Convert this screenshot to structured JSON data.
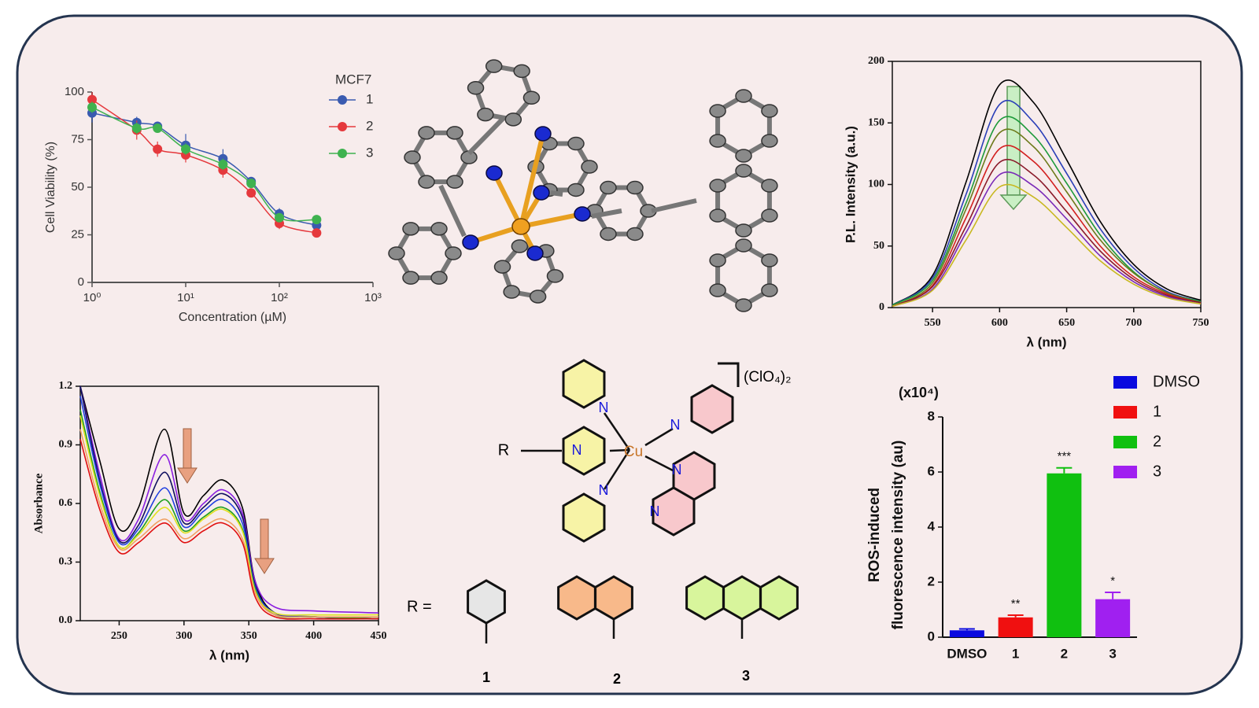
{
  "chart_data": [
    {
      "type": "scatter",
      "log_x": true,
      "x": [
        1,
        3,
        5,
        10,
        25,
        50,
        100,
        250
      ],
      "xlim": [
        1,
        1000
      ],
      "xticks": [
        {
          "value": 1,
          "label": "10⁰"
        },
        {
          "value": 10,
          "label": "10¹"
        },
        {
          "value": 100,
          "label": "10²"
        },
        {
          "value": 1000,
          "label": "10³"
        }
      ],
      "ylim": [
        0,
        100
      ],
      "yticks": [
        0,
        25,
        50,
        75,
        100
      ],
      "xlabel": "Concentration (µM)",
      "ylabel": "Cell Viability (%)",
      "legend_title": "MCF7",
      "series": [
        {
          "name": "1",
          "color": "#3a5bb0",
          "values": [
            89,
            84,
            82,
            72,
            65,
            53,
            36,
            30
          ],
          "errors": [
            5,
            3,
            2,
            6,
            5,
            2,
            3,
            2
          ]
        },
        {
          "name": "2",
          "color": "#e5393d",
          "values": [
            96,
            80,
            70,
            67,
            59,
            47,
            31,
            26
          ],
          "errors": [
            4,
            5,
            4,
            4,
            4,
            2,
            3,
            2
          ]
        },
        {
          "name": "3",
          "color": "#3fb24f",
          "values": [
            92,
            81,
            81,
            70,
            62,
            52,
            34,
            33
          ],
          "errors": [
            3,
            3,
            2,
            3,
            3,
            2,
            2,
            2
          ]
        }
      ]
    },
    {
      "type": "line",
      "x": [
        520,
        550,
        575,
        600,
        625,
        650,
        675,
        700,
        725,
        750
      ],
      "xlim": [
        520,
        750
      ],
      "xticks": [
        550,
        600,
        650,
        700,
        750
      ],
      "ylim": [
        0,
        200
      ],
      "yticks": [
        0,
        50,
        100,
        150,
        200
      ],
      "xlabel": "λ (nm)",
      "ylabel": "P.L. Intensity (a.u.)",
      "series": [
        {
          "color": "#000000",
          "values": [
            2,
            26,
            102,
            181,
            167,
            120,
            70,
            35,
            15,
            6
          ]
        },
        {
          "color": "#2a3fb8",
          "values": [
            2,
            24,
            92,
            165,
            151,
            109,
            64,
            32,
            13,
            5
          ]
        },
        {
          "color": "#1d9a3a",
          "values": [
            2,
            22,
            85,
            152,
            140,
            101,
            59,
            29,
            12,
            5
          ]
        },
        {
          "color": "#6d7a1a",
          "values": [
            1,
            20,
            80,
            142,
            131,
            94,
            55,
            28,
            12,
            4
          ]
        },
        {
          "color": "#d21f1f",
          "values": [
            1,
            18,
            73,
            129,
            119,
            86,
            50,
            25,
            11,
            4
          ]
        },
        {
          "color": "#8a1a2a",
          "values": [
            1,
            17,
            66,
            118,
            108,
            78,
            46,
            23,
            10,
            4
          ]
        },
        {
          "color": "#7a2ab8",
          "values": [
            1,
            15,
            61,
            108,
            99,
            72,
            42,
            21,
            9,
            3
          ]
        },
        {
          "color": "#c8b820",
          "values": [
            1,
            14,
            55,
            98,
            90,
            65,
            38,
            19,
            8,
            3
          ]
        }
      ]
    },
    {
      "type": "line",
      "x": [
        220,
        235,
        250,
        265,
        285,
        300,
        315,
        330,
        345,
        355,
        370,
        400,
        450
      ],
      "xlim": [
        220,
        450
      ],
      "xticks": [
        250,
        300,
        350,
        400,
        450
      ],
      "ylim": [
        0,
        1.2
      ],
      "yticks": [
        {
          "value": 0,
          "label": "0.0"
        },
        0.3,
        0.6,
        0.9,
        1.2
      ],
      "xlabel": "λ (nm)",
      "ylabel": "Absorbance",
      "series": [
        {
          "color": "#000000",
          "values": [
            1.2,
            0.82,
            0.47,
            0.58,
            0.98,
            0.55,
            0.64,
            0.72,
            0.58,
            0.2,
            0.04,
            0.02,
            0.01
          ]
        },
        {
          "color": "#8a1ee0",
          "values": [
            1.2,
            0.75,
            0.42,
            0.52,
            0.85,
            0.52,
            0.6,
            0.67,
            0.55,
            0.2,
            0.07,
            0.05,
            0.04
          ]
        },
        {
          "color": "#101060",
          "values": [
            1.2,
            0.72,
            0.41,
            0.49,
            0.76,
            0.5,
            0.58,
            0.65,
            0.53,
            0.18,
            0.04,
            0.02,
            0.01
          ]
        },
        {
          "color": "#2040e0",
          "values": [
            1.15,
            0.7,
            0.4,
            0.47,
            0.68,
            0.48,
            0.56,
            0.62,
            0.5,
            0.17,
            0.04,
            0.02,
            0.01
          ]
        },
        {
          "color": "#20a020",
          "values": [
            1.08,
            0.66,
            0.38,
            0.45,
            0.62,
            0.46,
            0.53,
            0.58,
            0.47,
            0.16,
            0.03,
            0.02,
            0.01
          ]
        },
        {
          "color": "#e0e020",
          "values": [
            1.05,
            0.64,
            0.38,
            0.44,
            0.58,
            0.45,
            0.52,
            0.57,
            0.46,
            0.15,
            0.04,
            0.03,
            0.03
          ]
        },
        {
          "color": "#f0a060",
          "values": [
            0.98,
            0.6,
            0.37,
            0.42,
            0.52,
            0.42,
            0.48,
            0.52,
            0.42,
            0.14,
            0.03,
            0.02,
            0.02
          ]
        },
        {
          "color": "#e01010",
          "values": [
            0.93,
            0.57,
            0.35,
            0.4,
            0.5,
            0.4,
            0.46,
            0.5,
            0.4,
            0.12,
            0.02,
            0.01,
            0.01
          ]
        }
      ]
    },
    {
      "type": "bar",
      "categories": [
        "DMSO",
        "1",
        "2",
        "3"
      ],
      "values": [
        0.25,
        0.72,
        5.95,
        1.38
      ],
      "errors": [
        0.05,
        0.08,
        0.2,
        0.25
      ],
      "colors": [
        "#0a0adf",
        "#f01010",
        "#10c010",
        "#a020f0"
      ],
      "annotations": [
        null,
        "**",
        "***",
        "*"
      ],
      "unit_label": "(x10⁴)",
      "ylabel": [
        "ROS-induced",
        "fluorescence intensity (au)"
      ],
      "ylim": [
        0,
        8
      ],
      "yticks": [
        0,
        2,
        4,
        6,
        8
      ],
      "legend": true
    }
  ],
  "structure": {
    "r_label": "R",
    "metal": "Cu",
    "nitrogen": "N",
    "counter_ion": "(ClO₄)₂",
    "r_equals": "R =",
    "compounds": [
      "1",
      "2",
      "3"
    ]
  }
}
